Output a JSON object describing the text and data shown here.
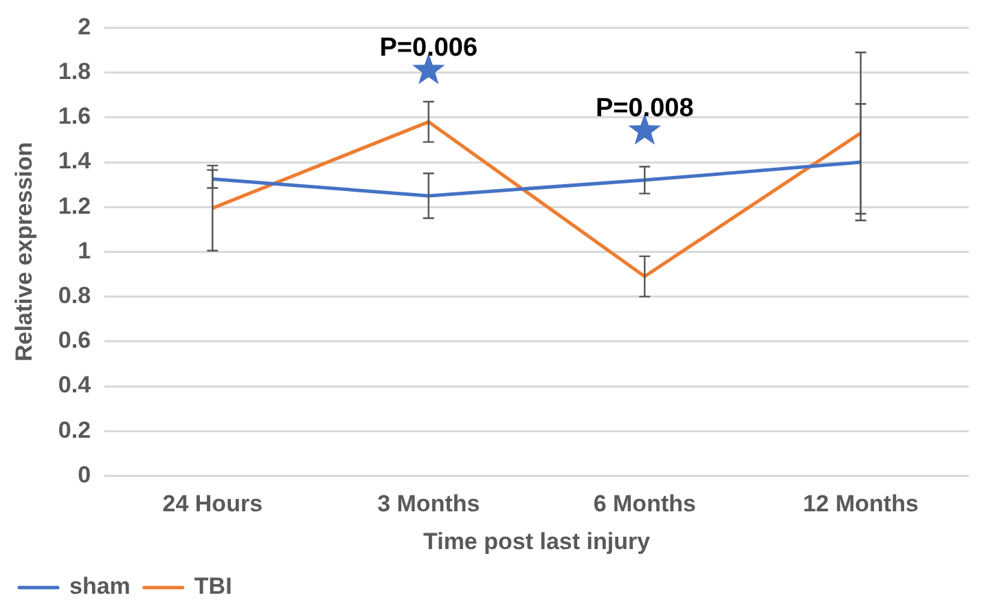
{
  "chart_data": {
    "type": "line",
    "xlabel": "Time post last injury",
    "ylabel": "Relative expression",
    "categories": [
      "24 Hours",
      "3 Months",
      "6 Months",
      "12 Months"
    ],
    "series": [
      {
        "name": "sham",
        "color": "#4472c4",
        "values": [
          1.325,
          1.25,
          1.32,
          1.4
        ],
        "errors": [
          0.04,
          0.1,
          0.06,
          0.26
        ]
      },
      {
        "name": "TBI",
        "color": "#ed7d31",
        "values": [
          1.195,
          1.58,
          0.89,
          1.53
        ],
        "errors": [
          0.19,
          0.09,
          0.09,
          0.36
        ]
      },
      {
        "type": "scatter",
        "color": "#4472c4",
        "marker": "star",
        "x": [
          "3 Months",
          "6 Months"
        ],
        "values": [
          1.81,
          1.54
        ]
      }
    ],
    "ylim": [
      0,
      2
    ],
    "yticks": [
      0,
      0.2,
      0.4,
      0.6,
      0.8,
      1,
      1.2,
      1.4,
      1.6,
      1.8,
      2
    ],
    "grid": "y",
    "legend": "bottom",
    "marker": "none",
    "annotations": [
      {
        "text": "P=0.006",
        "x": "3 Months",
        "y": 1.81
      },
      {
        "text": "P=0.008",
        "x": "6 Months",
        "y": 1.54
      }
    ]
  }
}
